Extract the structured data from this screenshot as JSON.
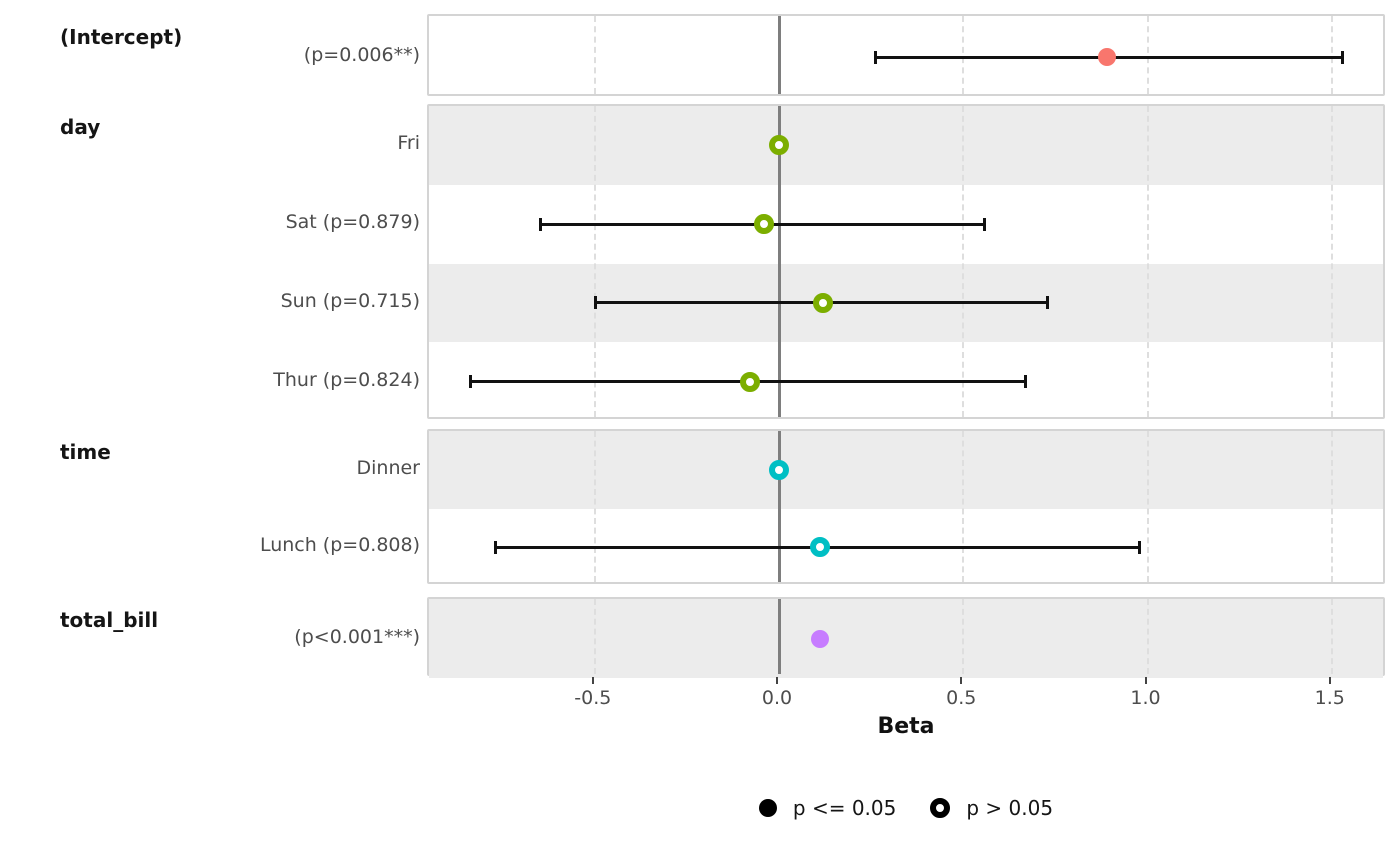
{
  "chart_data": {
    "type": "forest",
    "xlabel": "Beta",
    "xlim": [
      -0.95,
      1.65
    ],
    "x_ticks": [
      {
        "value": -0.5,
        "label": "-0.5"
      },
      {
        "value": 0.0,
        "label": "0.0"
      },
      {
        "value": 0.5,
        "label": "0.5"
      },
      {
        "value": 1.0,
        "label": "1.0"
      },
      {
        "value": 1.5,
        "label": "1.5"
      }
    ],
    "grid": "dashed-vertical-at-ticks",
    "zero_reference_line": 0.0,
    "groups": [
      {
        "variable": "(Intercept)",
        "color": "#F8766D",
        "rows": [
          {
            "label": "(p=0.006**)",
            "estimate": 0.89,
            "ci": [
              0.26,
              1.53
            ],
            "p_value": "0.006",
            "significant": true
          }
        ]
      },
      {
        "variable": "day",
        "color": "#7CAE00",
        "rows": [
          {
            "label": "Fri",
            "estimate": 0.0,
            "ci": null,
            "reference": true,
            "significant": false
          },
          {
            "label": "Sat (p=0.879)",
            "estimate": -0.04,
            "ci": [
              -0.65,
              0.56
            ],
            "p_value": "0.879",
            "significant": false
          },
          {
            "label": "Sun (p=0.715)",
            "estimate": 0.12,
            "ci": [
              -0.5,
              0.73
            ],
            "p_value": "0.715",
            "significant": false
          },
          {
            "label": "Thur (p=0.824)",
            "estimate": -0.08,
            "ci": [
              -0.84,
              0.67
            ],
            "p_value": "0.824",
            "significant": false
          }
        ]
      },
      {
        "variable": "time",
        "color": "#00BFC4",
        "rows": [
          {
            "label": "Dinner",
            "estimate": 0.0,
            "ci": null,
            "reference": true,
            "significant": false
          },
          {
            "label": "Lunch (p=0.808)",
            "estimate": 0.11,
            "ci": [
              -0.77,
              0.98
            ],
            "p_value": "0.808",
            "significant": false
          }
        ]
      },
      {
        "variable": "total_bill",
        "color": "#C77CFF",
        "rows": [
          {
            "label": "(p<0.001***)",
            "estimate": 0.11,
            "ci": null,
            "p_value": "<0.001",
            "significant": true
          }
        ]
      }
    ],
    "legend": [
      {
        "label": "p <= 0.05",
        "filled": true
      },
      {
        "label": "p > 0.05",
        "filled": false
      }
    ],
    "style_colors": {
      "stripe": "#ececec",
      "panel_border": "#d4d4d4",
      "gridline": "#dedede",
      "zero_line": "#7e7e7e",
      "errorbar": "#111111",
      "term_text": "#4d4d4d",
      "title_text": "#151515"
    }
  }
}
